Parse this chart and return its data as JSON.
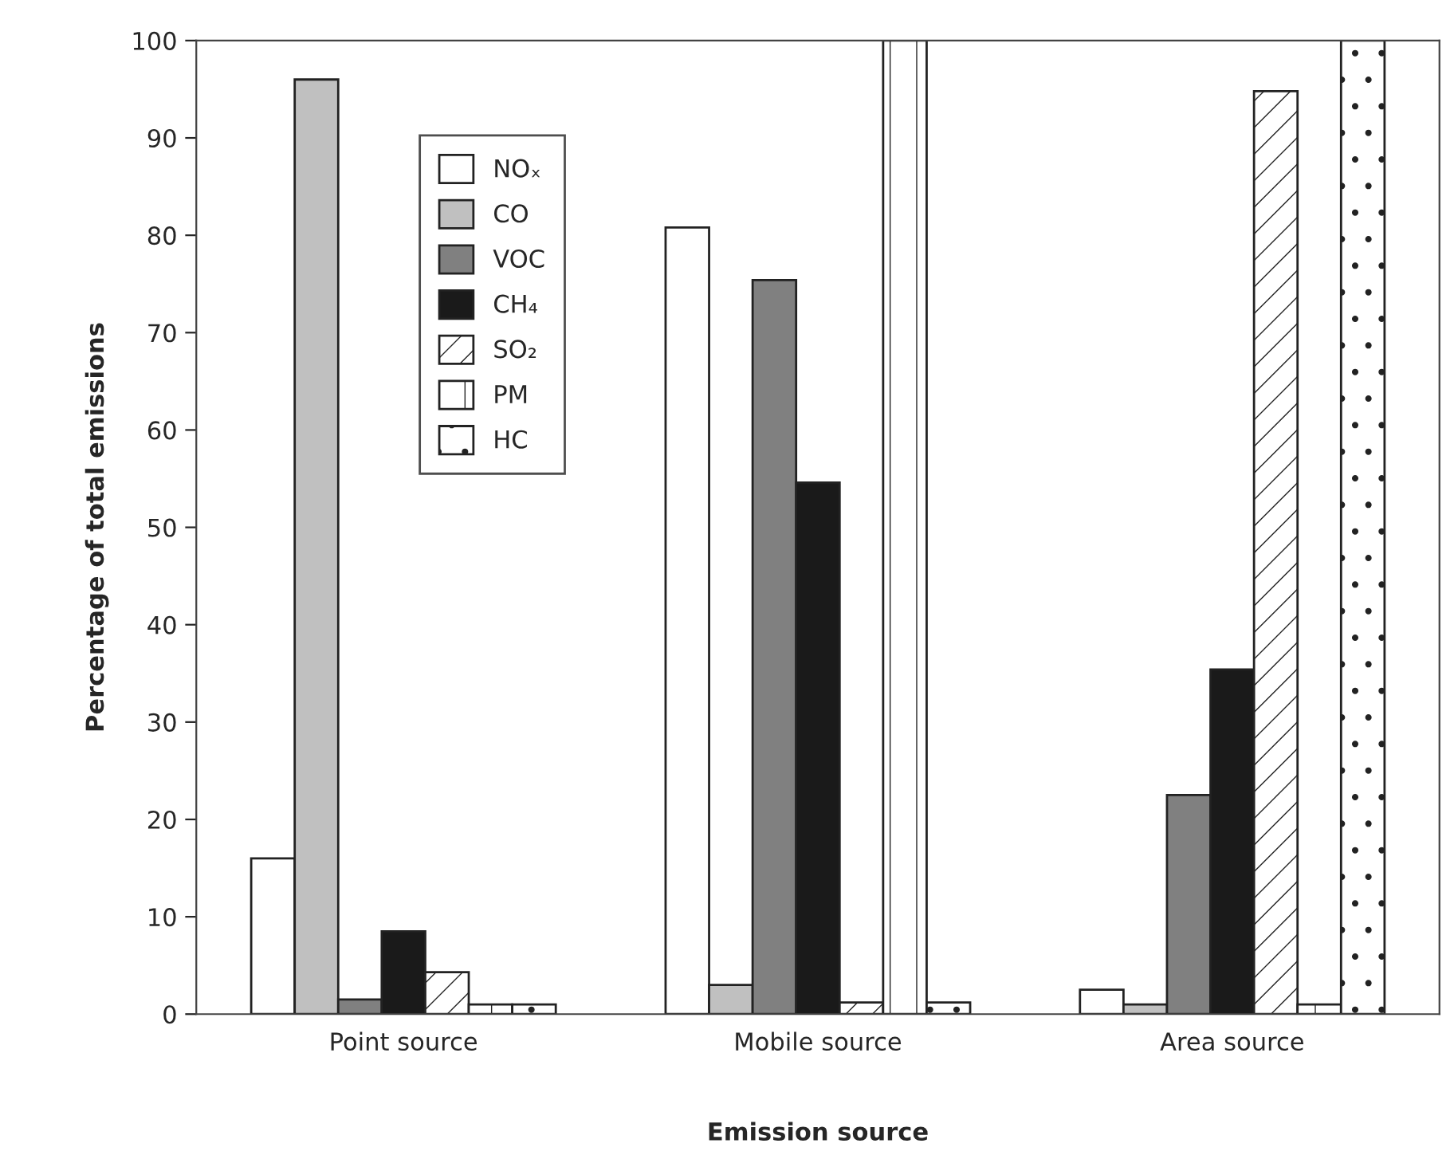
{
  "chart_data": {
    "type": "bar",
    "xlabel": "Emission source",
    "ylabel": "Percentage of total emissions",
    "categories": [
      "Point source",
      "Mobile source",
      "Area source"
    ],
    "series": [
      {
        "name": "NOₓ",
        "color": "#ffffff",
        "values": [
          16,
          80.8,
          2.5
        ]
      },
      {
        "name": "CO",
        "color": "#c0c0c0",
        "values": [
          96,
          3,
          1
        ]
      },
      {
        "name": "VOC",
        "color": "#808080",
        "values": [
          1.5,
          75.4,
          22.5
        ]
      },
      {
        "name": "CH₄",
        "color": "#1a1a1a",
        "values": [
          8.5,
          54.6,
          35.4
        ]
      },
      {
        "name": "SO₂",
        "color": "#222222",
        "values": [
          4.3,
          1.2,
          94.8
        ]
      },
      {
        "name": "PM",
        "color": "#222222",
        "values": [
          1,
          100,
          1
        ]
      },
      {
        "name": "HC",
        "color": "#222222",
        "values": [
          1,
          1.2,
          100
        ]
      }
    ],
    "ylim": [
      0,
      100
    ],
    "yticks": [
      0,
      10,
      20,
      30,
      40,
      50,
      60,
      70,
      80,
      90,
      100
    ],
    "legend": "top left",
    "grid": false
  }
}
